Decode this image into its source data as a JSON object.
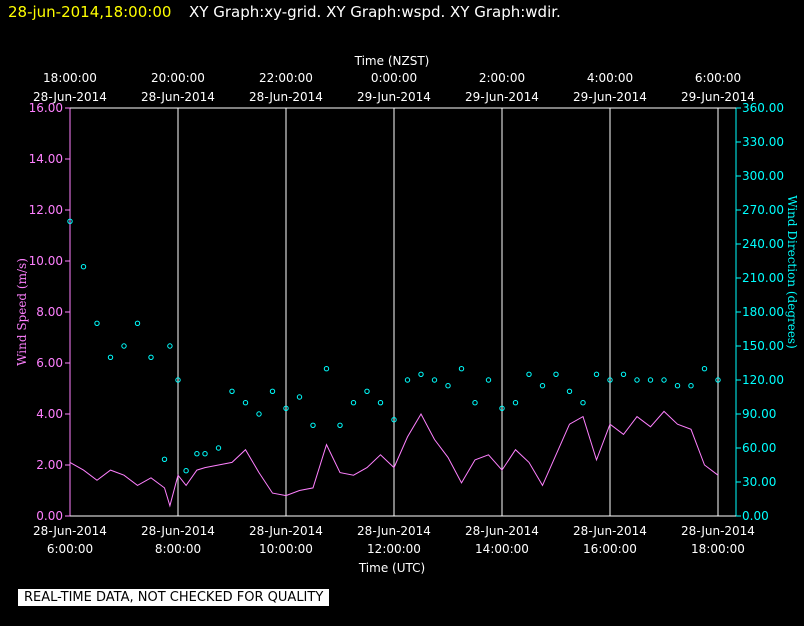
{
  "header": {
    "datetime": "28-jun-2014,18:00:00",
    "titles": "XY Graph:xy-grid.  XY Graph:wspd.  XY Graph:wdir."
  },
  "footer_note": "REAL-TIME DATA, NOT CHECKED FOR QUALITY",
  "colors": {
    "background": "#000000",
    "speed": "#ff80ff",
    "direction": "#00ffff",
    "grid": "#ffffff",
    "date": "#ffff00"
  },
  "chart_data": {
    "type": "line",
    "top_axis": {
      "label": "Time (NZST)",
      "ticks": [
        {
          "time": "18:00:00",
          "date": "28-Jun-2014"
        },
        {
          "time": "20:00:00",
          "date": "28-Jun-2014"
        },
        {
          "time": "22:00:00",
          "date": "28-Jun-2014"
        },
        {
          "time": "0:00:00",
          "date": "29-Jun-2014"
        },
        {
          "time": "2:00:00",
          "date": "29-Jun-2014"
        },
        {
          "time": "4:00:00",
          "date": "29-Jun-2014"
        },
        {
          "time": "6:00:00",
          "date": "29-Jun-2014"
        }
      ]
    },
    "bottom_axis": {
      "label": "Time (UTC)",
      "ticks": [
        {
          "date": "28-Jun-2014",
          "time": "6:00:00"
        },
        {
          "date": "28-Jun-2014",
          "time": "8:00:00"
        },
        {
          "date": "28-Jun-2014",
          "time": "10:00:00"
        },
        {
          "date": "28-Jun-2014",
          "time": "12:00:00"
        },
        {
          "date": "28-Jun-2014",
          "time": "14:00:00"
        },
        {
          "date": "28-Jun-2014",
          "time": "16:00:00"
        },
        {
          "date": "28-Jun-2014",
          "time": "18:00:00"
        }
      ],
      "xlim_utc_hours": [
        6,
        18
      ]
    },
    "y_left": {
      "label": "Wind Speed (m/s)",
      "ylim": [
        0,
        16
      ],
      "ticks": [
        "0.00",
        "2.00",
        "4.00",
        "6.00",
        "8.00",
        "10.00",
        "12.00",
        "14.00",
        "16.00"
      ]
    },
    "y_right": {
      "label": "Wind Direction (degrees)",
      "ylim": [
        0,
        360
      ],
      "ticks": [
        "0.00",
        "30.00",
        "60.00",
        "90.00",
        "120.00",
        "150.00",
        "180.00",
        "210.00",
        "240.00",
        "270.00",
        "300.00",
        "330.00",
        "360.00"
      ]
    },
    "grid": "vertical",
    "series": [
      {
        "name": "wspd",
        "style": "line",
        "x_utc_hours": [
          6.0,
          6.25,
          6.5,
          6.75,
          7.0,
          7.25,
          7.5,
          7.75,
          7.85,
          8.0,
          8.15,
          8.35,
          8.5,
          8.75,
          9.0,
          9.25,
          9.5,
          9.75,
          10.0,
          10.25,
          10.5,
          10.75,
          11.0,
          11.25,
          11.5,
          11.75,
          12.0,
          12.25,
          12.5,
          12.75,
          13.0,
          13.25,
          13.5,
          13.75,
          14.0,
          14.25,
          14.5,
          14.75,
          15.0,
          15.25,
          15.5,
          15.75,
          16.0,
          16.25,
          16.5,
          16.75,
          17.0,
          17.25,
          17.5,
          17.75,
          18.0
        ],
        "values": [
          2.1,
          1.8,
          1.4,
          1.8,
          1.6,
          1.2,
          1.5,
          1.1,
          0.4,
          1.6,
          1.2,
          1.8,
          1.9,
          2.0,
          2.1,
          2.6,
          1.7,
          0.9,
          0.8,
          1.0,
          1.1,
          2.8,
          1.7,
          1.6,
          1.9,
          2.4,
          1.9,
          3.1,
          4.0,
          3.0,
          2.3,
          1.3,
          2.2,
          2.4,
          1.8,
          2.6,
          2.1,
          1.2,
          2.4,
          3.6,
          3.9,
          2.2,
          3.6,
          3.2,
          3.9,
          3.5,
          4.1,
          3.6,
          3.4,
          2.0,
          1.6
        ]
      },
      {
        "name": "wdir",
        "style": "markers",
        "x_utc_hours": [
          6.0,
          6.25,
          6.5,
          6.75,
          7.0,
          7.25,
          7.5,
          7.75,
          7.85,
          8.0,
          8.15,
          8.35,
          8.5,
          8.75,
          9.0,
          9.25,
          9.5,
          9.75,
          10.0,
          10.25,
          10.5,
          10.75,
          11.0,
          11.25,
          11.5,
          11.75,
          12.0,
          12.25,
          12.5,
          12.75,
          13.0,
          13.25,
          13.5,
          13.75,
          14.0,
          14.25,
          14.5,
          14.75,
          15.0,
          15.25,
          15.5,
          15.75,
          16.0,
          16.25,
          16.5,
          16.75,
          17.0,
          17.25,
          17.5,
          17.75,
          18.0
        ],
        "values": [
          260,
          220,
          170,
          140,
          150,
          170,
          140,
          50,
          150,
          120,
          40,
          55,
          55,
          60,
          110,
          100,
          90,
          110,
          95,
          105,
          80,
          130,
          80,
          100,
          110,
          100,
          85,
          120,
          125,
          120,
          115,
          130,
          100,
          120,
          95,
          100,
          125,
          115,
          125,
          110,
          100,
          125,
          120,
          125,
          120,
          120,
          120,
          115,
          115,
          130,
          120
        ]
      }
    ]
  }
}
